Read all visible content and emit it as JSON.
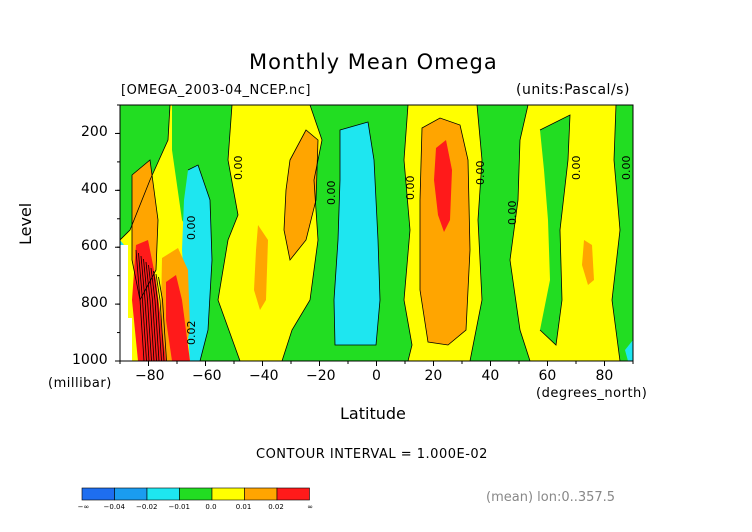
{
  "chart_data": {
    "type": "heatmap",
    "title": "Monthly Mean Omega",
    "subtitle_left": "[OMEGA_2003-04_NCEP.nc]",
    "subtitle_right": "(units:Pascal/s)",
    "xlabel": "Latitude",
    "xunit": "(degrees_north)",
    "ylabel": "Level",
    "yunit": "(millibar)",
    "xlim": [
      -90,
      90
    ],
    "ylim": [
      1000,
      100
    ],
    "x_ticks": [
      "-80",
      "-60",
      "-40",
      "-20",
      "0",
      "20",
      "40",
      "60",
      "80"
    ],
    "y_ticks": [
      "200",
      "400",
      "600",
      "800",
      "1000"
    ],
    "contour_interval_text": "CONTOUR INTERVAL = 1.000E-02",
    "mean_note": "(mean) lon:0..357.5",
    "contour_labels": [
      "0.00",
      "0.00",
      "0.00",
      "0.00",
      "0.00",
      "0.00",
      "0.00",
      "0.00",
      "0.02"
    ],
    "colorbar": {
      "colors": [
        "#1e6ef0",
        "#1a9cf0",
        "#1ee6f0",
        "#22dd22",
        "#ffff00",
        "#ffa500",
        "#ff1a1a"
      ],
      "labels": [
        "-∞",
        "-0.04",
        "-0.02",
        "-0.01",
        "0.0",
        "0.01",
        "0.02",
        "∞"
      ]
    },
    "bands": [
      {
        "x": -90,
        "level": "green"
      },
      {
        "x": -80,
        "level": "orange / red near surface"
      },
      {
        "x": -65,
        "level": "cyan"
      },
      {
        "x": -55,
        "level": "green"
      },
      {
        "x": -40,
        "level": "yellow"
      },
      {
        "x": -25,
        "level": "orange"
      },
      {
        "x": -10,
        "level": "green"
      },
      {
        "x": -5,
        "level": "cyan"
      },
      {
        "x": 10,
        "level": "green"
      },
      {
        "x": 22,
        "level": "orange / red core"
      },
      {
        "x": 38,
        "level": "green"
      },
      {
        "x": 50,
        "level": "yellow"
      },
      {
        "x": 60,
        "level": "green"
      },
      {
        "x": 75,
        "level": "yellow"
      },
      {
        "x": 88,
        "level": "green"
      }
    ]
  }
}
